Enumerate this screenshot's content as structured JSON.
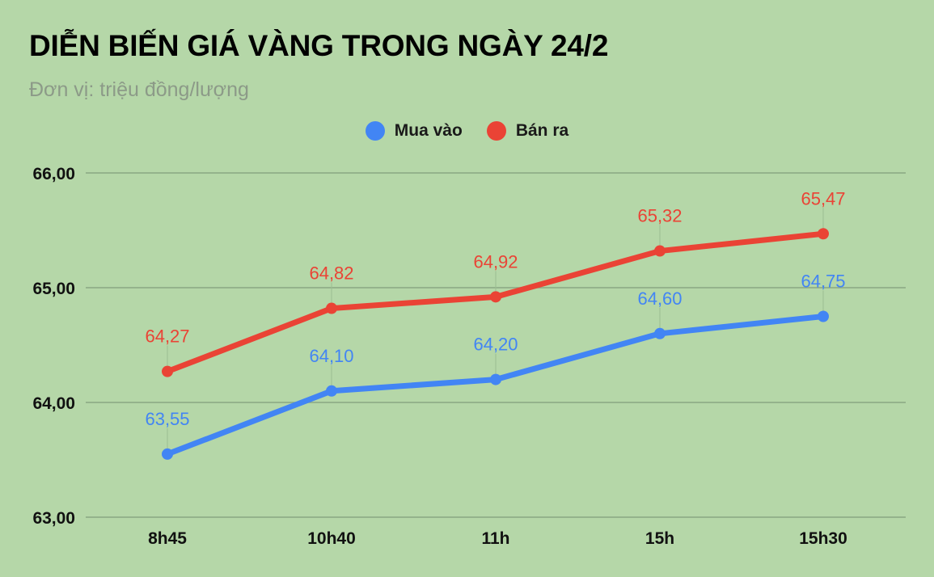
{
  "colors": {
    "buy": "#4285f4",
    "sell": "#ea4335",
    "grid": "#8aa783"
  },
  "chart_data": {
    "type": "line",
    "title": "DIỄN BIẾN GIÁ VÀNG TRONG NGÀY 24/2",
    "subtitle": "Đơn vị: triệu đồng/lượng",
    "categories": [
      "8h45",
      "10h40",
      "11h",
      "15h",
      "15h30"
    ],
    "series": [
      {
        "name": "Mua vào",
        "values": [
          63.55,
          64.1,
          64.2,
          64.6,
          64.75
        ],
        "labels": [
          "63,55",
          "64,10",
          "64,20",
          "64,60",
          "64,75"
        ]
      },
      {
        "name": "Bán  ra",
        "values": [
          64.27,
          64.82,
          64.92,
          65.32,
          65.47
        ],
        "labels": [
          "64,27",
          "64,82",
          "64,92",
          "65,32",
          "65,47"
        ]
      }
    ],
    "ylim": [
      63,
      66
    ],
    "yticks": [
      "63,00",
      "64,00",
      "65,00",
      "66,00"
    ],
    "ytick_values": [
      63,
      64,
      65,
      66
    ],
    "grid": true,
    "legend_position": "top"
  }
}
